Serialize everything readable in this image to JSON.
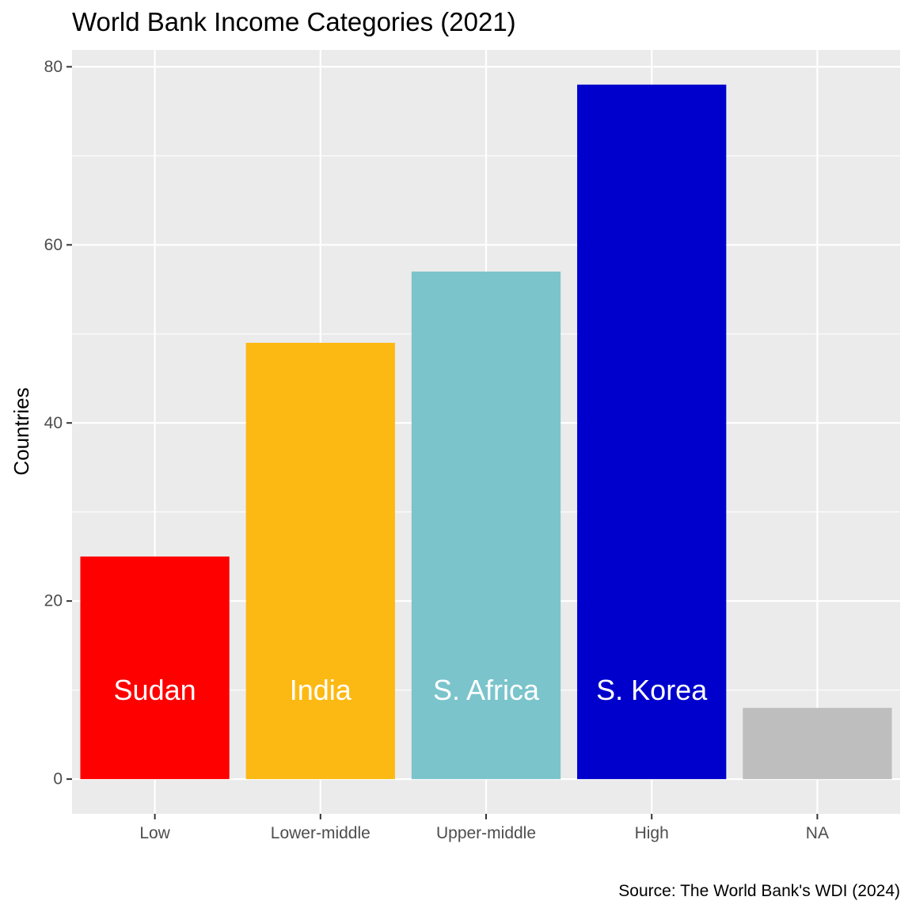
{
  "chart_data": {
    "type": "bar",
    "title": "World Bank Income Categories (2021)",
    "xlabel": "",
    "ylabel": "Countries",
    "caption": "Source: The World Bank's WDI (2024)",
    "categories": [
      "Low",
      "Lower-middle",
      "Upper-middle",
      "High",
      "NA"
    ],
    "values": [
      25,
      49,
      57,
      78,
      8
    ],
    "bar_labels": [
      "Sudan",
      "India",
      "S. Africa",
      "S. Korea",
      ""
    ],
    "bar_label_y": 10,
    "colors": [
      "#FF0000",
      "#FDB913",
      "#7BC4CC",
      "#0000CD",
      "#BEBEBE"
    ],
    "ylim": [
      -3.9,
      81.9
    ],
    "yticks": [
      0,
      20,
      40,
      60,
      80
    ],
    "yticks_minor": [
      10,
      30,
      50,
      70
    ],
    "grid": true,
    "legend": "none",
    "panel_background": "#EBEBEB",
    "grid_color": "#FFFFFF"
  }
}
